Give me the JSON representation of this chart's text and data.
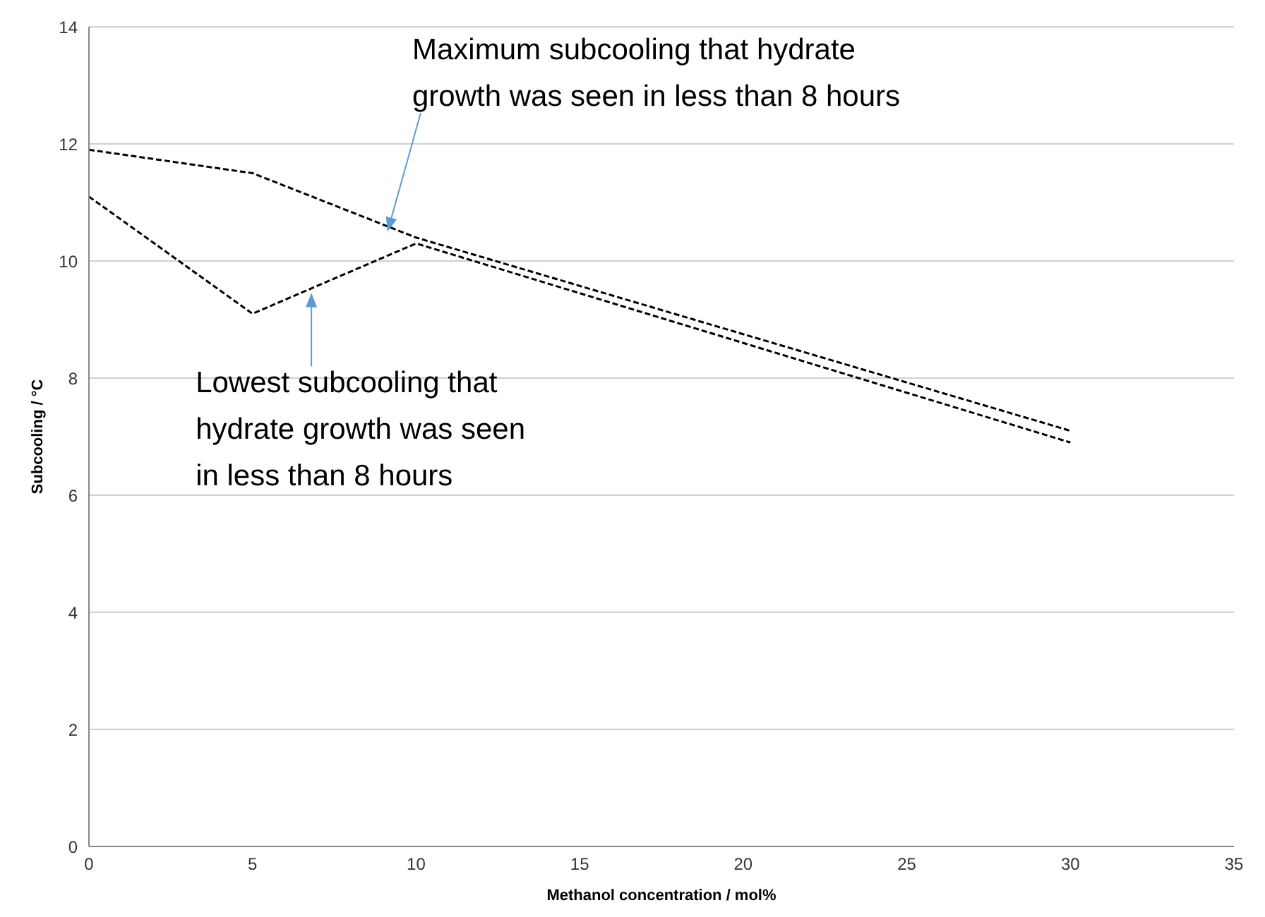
{
  "chart_data": {
    "type": "line",
    "xlabel": "Methanol concentration / mol%",
    "ylabel": "Subcooling / °C",
    "x": [
      0,
      5,
      10,
      30
    ],
    "series": [
      {
        "color": "#000000",
        "values": [
          11.9,
          11.5,
          10.4,
          7.1
        ]
      },
      {
        "color": "#000000",
        "values": [
          11.1,
          9.1,
          10.3,
          6.9
        ]
      }
    ],
    "xlim": [
      0,
      35
    ],
    "xticks": [
      0,
      5,
      10,
      15,
      20,
      25,
      30,
      35
    ],
    "ylim": [
      0,
      14
    ],
    "yticks": [
      0,
      2,
      4,
      6,
      8,
      10,
      12,
      14
    ],
    "grid": "y",
    "marker": "none",
    "line_style": "dashed",
    "annotations": [
      "Maximum subcooling that hydrate\ngrowth was seen in less than 8 hours",
      {
        "text": "Lowest subcooling that\nhydrate growth was seen\nin less than 8 hours",
        "x": 6.8,
        "y": 9.5
      }
    ]
  }
}
